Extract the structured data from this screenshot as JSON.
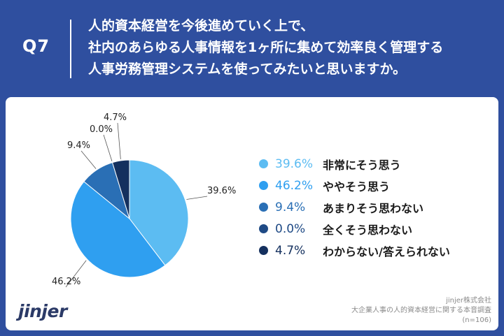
{
  "header": {
    "qnum": "Q7",
    "lines": [
      "人的資本経営を今後進めていく上で、",
      "社内のあらゆる人事情報を1ヶ所に集めて効率良く管理する",
      "人事労務管理システムを使ってみたいと思いますか。"
    ]
  },
  "chart_data": {
    "type": "pie",
    "title": "",
    "slices": [
      {
        "label": "非常にそう思う",
        "value": 39.6,
        "display": "39.6%",
        "color": "#5cbcf2"
      },
      {
        "label": "ややそう思う",
        "value": 46.2,
        "display": "46.2%",
        "color": "#2f9ff0"
      },
      {
        "label": "あまりそう思わない",
        "value": 9.4,
        "display": "9.4%",
        "color": "#2a6fb5"
      },
      {
        "label": "全くそう思わない",
        "value": 0.0,
        "display": "0.0%",
        "color": "#1f4a85"
      },
      {
        "label": "わからない/答えられない",
        "value": 4.7,
        "display": "4.7%",
        "color": "#14305e"
      }
    ],
    "legend_position": "right"
  },
  "footer": {
    "logo": "jinjer",
    "source_lines": [
      "jinjer株式会社",
      "大企業人事の人的資本経営に関する本音調査",
      "(n=106)"
    ]
  }
}
